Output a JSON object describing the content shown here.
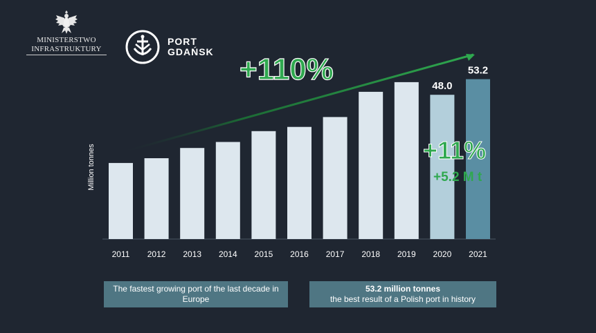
{
  "logos": {
    "ministry_line1": "MINISTERSTWO",
    "ministry_line2": "INFRASTRUKTURY",
    "port_line1": "PORT",
    "port_line2": "GDAŃSK",
    "ministry_icon": "white-eagle-emblem-icon",
    "port_icon": "anchor-emblem-icon"
  },
  "chart_data": {
    "type": "bar",
    "ylabel": "Million tonnes",
    "categories": [
      "2011",
      "2012",
      "2013",
      "2014",
      "2015",
      "2016",
      "2017",
      "2018",
      "2019",
      "2020",
      "2021"
    ],
    "values": [
      25.3,
      26.9,
      30.3,
      32.3,
      35.9,
      37.3,
      40.6,
      49.0,
      52.2,
      48.0,
      53.2
    ],
    "value_labels": [
      "",
      "",
      "",
      "",
      "",
      "",
      "",
      "",
      "",
      "48.0",
      "53.2"
    ],
    "bar_colors": [
      "#dde7ee",
      "#dde7ee",
      "#dde7ee",
      "#dde7ee",
      "#dde7ee",
      "#dde7ee",
      "#dde7ee",
      "#dde7ee",
      "#dde7ee",
      "#b3cfdb",
      "#5a8ea3"
    ],
    "ylim": [
      0,
      60
    ],
    "grid": false,
    "annotations": {
      "growth_big": "+110%",
      "growth_recent": "+11%",
      "growth_recent_abs": "+5.2 M t"
    },
    "accent_color": "#2fa84f"
  },
  "captions": {
    "left": "The fastest growing port of the last decade in Europe",
    "right_bold": "53.2 million tonnes",
    "right": "the best result of a Polish port in history"
  }
}
